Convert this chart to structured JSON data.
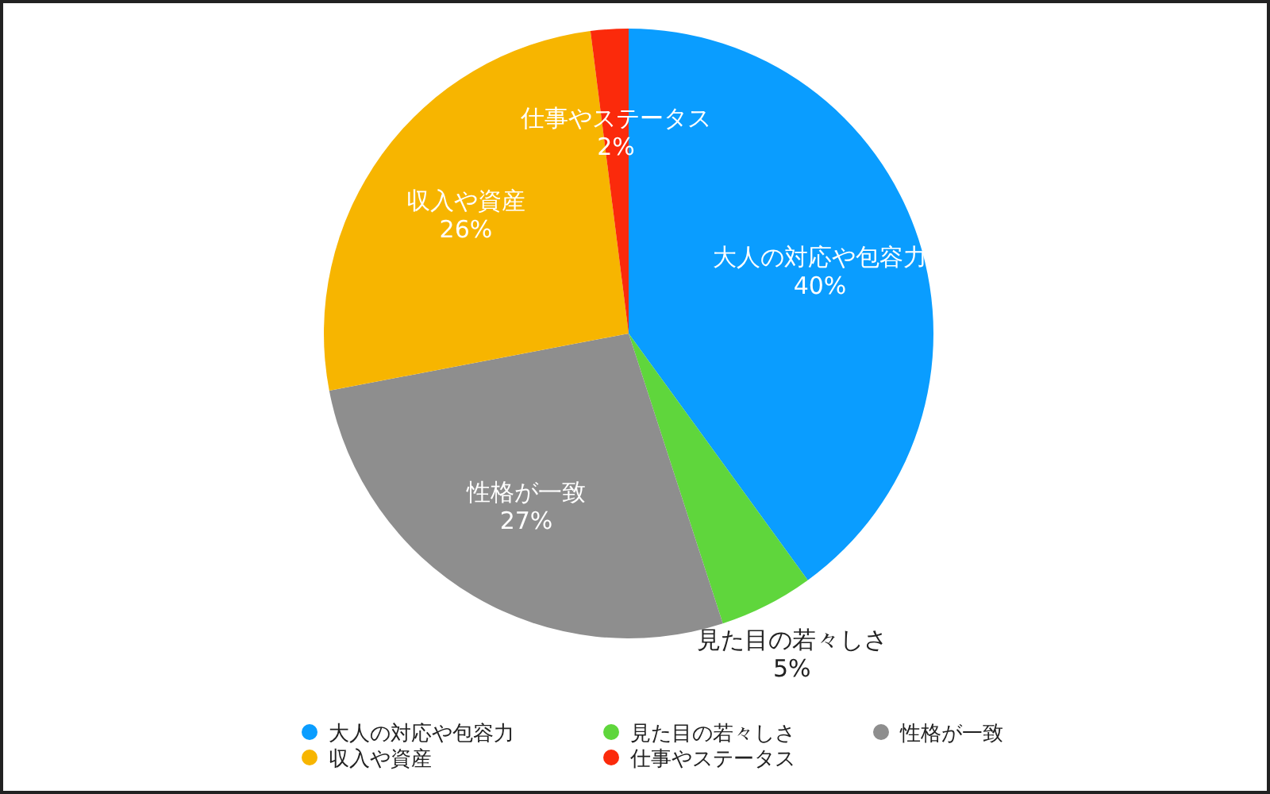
{
  "chart_data": {
    "type": "pie",
    "categories": [
      "大人の対応や包容力",
      "見た目の若々しさ",
      "性格が一致",
      "収入や資産",
      "仕事やステータス"
    ],
    "values": [
      40,
      5,
      27,
      26,
      2
    ],
    "colors": [
      "#0a9dff",
      "#5fd63c",
      "#8e8e8e",
      "#f7b500",
      "#fb2a0b"
    ],
    "value_labels": [
      "40%",
      "5%",
      "27%",
      "26%",
      "2%"
    ],
    "legend": "bottom"
  }
}
